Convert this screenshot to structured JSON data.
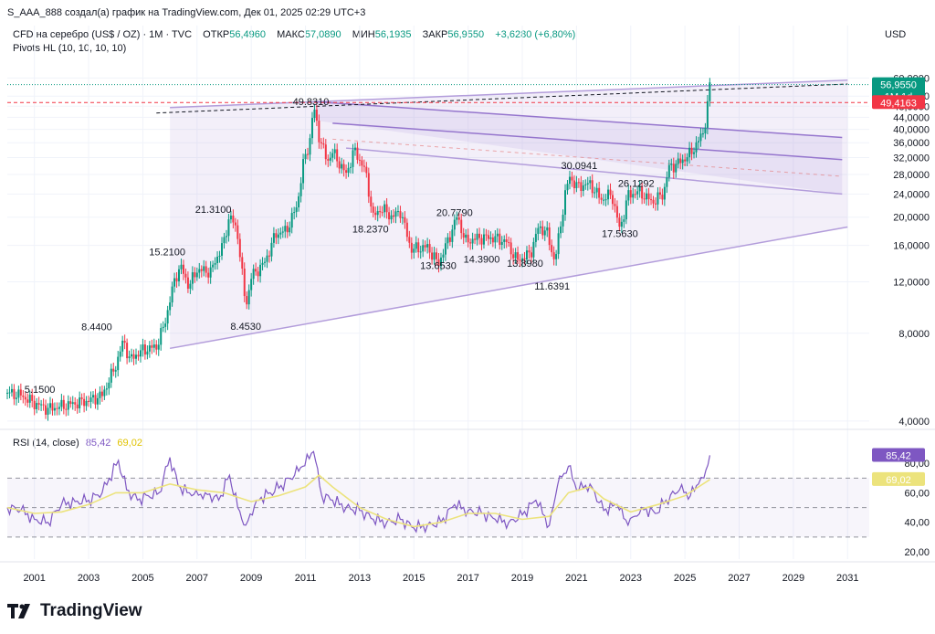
{
  "header": {
    "attribution": "S_AAA_888 создал(а) график на TradingView.com, Дек 01, 2025 02:29 UTC+3"
  },
  "symbol_line": {
    "title": "CFD на серебро (US$ / OZ) · 1M · TVC",
    "open_label": "ОТКР",
    "open_value": "56,4960",
    "high_label": "МАКС",
    "high_value": "57,0890",
    "low_label": "МИН",
    "low_value": "56,1935",
    "close_label": "ЗАКР",
    "close_value": "56,9550",
    "change": "+3,6280 (+6,80%)"
  },
  "indicator_line": "Pivots HL (10, 10, 10, 10)",
  "rsi_legend": {
    "label": "RSI (14, close)",
    "rsi_value": "85,42",
    "ma_value": "69,02"
  },
  "currency": "USD",
  "logo_text": "TradingView",
  "colors": {
    "up": "#089981",
    "down": "#f23645",
    "rsi": "#7e57c2",
    "rsi_ma": "#ece37c",
    "channel": "#b39ddb",
    "price_line": "#089981",
    "red_line": "#f23645"
  },
  "chart_data": [
    {
      "type": "candlestick",
      "interval": "1M",
      "y_scale": "log",
      "ylim": [
        3.8,
        68
      ],
      "xlim": [
        2000.0,
        2031.8
      ],
      "x_ticks": [
        "2001",
        "2003",
        "2005",
        "2007",
        "2009",
        "2011",
        "2013",
        "2015",
        "2017",
        "2019",
        "2021",
        "2023",
        "2025",
        "2027",
        "2029",
        "2031"
      ],
      "y_ticks": [
        "60,0000",
        "52,0000",
        "48,0000",
        "44,0000",
        "40,0000",
        "36,0000",
        "32,0000",
        "28,0000",
        "24,0000",
        "20,0000",
        "16,0000",
        "12,0000",
        "8,0000",
        "4,0000"
      ],
      "series": [
        {
          "close": [
            [
              2000.0,
              5.0
            ],
            [
              2000.5,
              4.9
            ],
            [
              2001.0,
              4.6
            ],
            [
              2001.5,
              4.4
            ],
            [
              2002.0,
              4.5
            ],
            [
              2002.5,
              4.6
            ],
            [
              2003.0,
              4.7
            ],
            [
              2003.5,
              4.9
            ],
            [
              2004.0,
              6.2
            ],
            [
              2004.3,
              7.6
            ],
            [
              2004.5,
              6.5
            ],
            [
              2005.0,
              7.0
            ],
            [
              2005.5,
              7.2
            ],
            [
              2005.8,
              8.6
            ],
            [
              2006.2,
              12.5
            ],
            [
              2006.4,
              13.5
            ],
            [
              2006.7,
              11.6
            ],
            [
              2007.0,
              13.2
            ],
            [
              2007.5,
              13.0
            ],
            [
              2008.0,
              16.5
            ],
            [
              2008.2,
              20.5
            ],
            [
              2008.5,
              17.5
            ],
            [
              2008.8,
              9.8
            ],
            [
              2009.0,
              12.5
            ],
            [
              2009.5,
              14.0
            ],
            [
              2009.9,
              17.5
            ],
            [
              2010.3,
              18.0
            ],
            [
              2010.7,
              22.0
            ],
            [
              2010.9,
              30.0
            ],
            [
              2011.15,
              36.0
            ],
            [
              2011.3,
              48.0
            ],
            [
              2011.5,
              38.0
            ],
            [
              2011.8,
              31.0
            ],
            [
              2012.0,
              33.5
            ],
            [
              2012.5,
              28.0
            ],
            [
              2012.8,
              34.0
            ],
            [
              2013.2,
              29.0
            ],
            [
              2013.5,
              20.0
            ],
            [
              2013.8,
              21.5
            ],
            [
              2014.2,
              20.0
            ],
            [
              2014.5,
              21.0
            ],
            [
              2014.9,
              15.5
            ],
            [
              2015.5,
              15.8
            ],
            [
              2015.9,
              13.8
            ],
            [
              2016.3,
              17.0
            ],
            [
              2016.6,
              20.2
            ],
            [
              2016.9,
              16.5
            ],
            [
              2017.4,
              17.0
            ],
            [
              2017.9,
              17.0
            ],
            [
              2018.4,
              16.5
            ],
            [
              2018.8,
              14.2
            ],
            [
              2019.3,
              15.0
            ],
            [
              2019.6,
              18.5
            ],
            [
              2019.9,
              17.8
            ],
            [
              2020.2,
              14.0
            ],
            [
              2020.6,
              24.5
            ],
            [
              2020.75,
              27.5
            ],
            [
              2021.0,
              25.5
            ],
            [
              2021.5,
              26.0
            ],
            [
              2021.9,
              23.0
            ],
            [
              2022.3,
              24.0
            ],
            [
              2022.6,
              18.0
            ],
            [
              2022.9,
              23.8
            ],
            [
              2023.3,
              24.5
            ],
            [
              2023.8,
              22.5
            ],
            [
              2024.2,
              24.0
            ],
            [
              2024.4,
              29.5
            ],
            [
              2024.8,
              30.8
            ],
            [
              2025.2,
              33.0
            ],
            [
              2025.5,
              36.5
            ],
            [
              2025.7,
              39.5
            ],
            [
              2025.83,
              48.0
            ],
            [
              2025.92,
              56.955
            ]
          ]
        }
      ],
      "annotations": [
        {
          "x": 2001.2,
          "y": 5.15,
          "text": "5.1500"
        },
        {
          "x": 2003.3,
          "y": 8.44,
          "text": "8.4400"
        },
        {
          "x": 2005.9,
          "y": 15.21,
          "text": "15.2100"
        },
        {
          "x": 2007.6,
          "y": 21.31,
          "text": "21.3100"
        },
        {
          "x": 2008.8,
          "y": 8.453,
          "text": "8.4530"
        },
        {
          "x": 2011.2,
          "y": 49.831,
          "text": "49.8310"
        },
        {
          "x": 2013.4,
          "y": 18.237,
          "text": "18.2370"
        },
        {
          "x": 2016.5,
          "y": 20.779,
          "text": "20.7790"
        },
        {
          "x": 2015.9,
          "y": 13.653,
          "text": "13.6530"
        },
        {
          "x": 2017.5,
          "y": 14.39,
          "text": "14.3900"
        },
        {
          "x": 2019.1,
          "y": 13.898,
          "text": "13.8980"
        },
        {
          "x": 2020.1,
          "y": 11.6391,
          "text": "11.6391"
        },
        {
          "x": 2021.1,
          "y": 30.0941,
          "text": "30.0941"
        },
        {
          "x": 2023.2,
          "y": 26.1292,
          "text": "26.1292"
        },
        {
          "x": 2022.6,
          "y": 17.563,
          "text": "17.5630"
        }
      ],
      "price_tags": [
        {
          "value": 56.955,
          "text": "56,9550",
          "subtext": "1M 1d",
          "color": "#089981"
        },
        {
          "value": 49.4163,
          "text": "49,4163",
          "color": "#f23645"
        }
      ]
    },
    {
      "type": "line",
      "title": "RSI (14, close)",
      "ylim": [
        15,
        95
      ],
      "y_ticks": [
        "80,00",
        "60,00",
        "40,00",
        "20,00"
      ],
      "bands": [
        70,
        50,
        30
      ],
      "series": [
        {
          "name": "RSI",
          "x": [
            2000.0,
            2000.5,
            2001.0,
            2001.5,
            2002.0,
            2002.5,
            2003.0,
            2003.5,
            2004.1,
            2004.4,
            2004.8,
            2005.2,
            2005.6,
            2006.0,
            2006.3,
            2006.8,
            2007.3,
            2007.8,
            2008.2,
            2008.5,
            2008.8,
            2009.2,
            2009.7,
            2010.1,
            2010.6,
            2010.9,
            2011.3,
            2011.6,
            2012.0,
            2012.5,
            2013.0,
            2013.5,
            2014.0,
            2014.5,
            2015.0,
            2015.5,
            2016.0,
            2016.5,
            2017.0,
            2017.5,
            2018.0,
            2018.5,
            2019.0,
            2019.5,
            2020.0,
            2020.3,
            2020.7,
            2021.0,
            2021.5,
            2022.0,
            2022.5,
            2022.9,
            2023.4,
            2023.9,
            2024.3,
            2024.8,
            2025.2,
            2025.5,
            2025.7,
            2025.92
          ],
          "values": [
            50,
            48,
            42,
            40,
            52,
            54,
            55,
            60,
            82,
            62,
            55,
            58,
            60,
            84,
            65,
            58,
            60,
            55,
            72,
            50,
            38,
            55,
            60,
            65,
            72,
            78,
            88,
            58,
            55,
            50,
            48,
            42,
            40,
            42,
            36,
            38,
            40,
            52,
            48,
            46,
            42,
            40,
            45,
            55,
            38,
            65,
            78,
            62,
            66,
            48,
            52,
            38,
            50,
            46,
            55,
            62,
            58,
            66,
            70,
            85.42
          ]
        },
        {
          "name": "RSI-based MA",
          "x": [
            2000.0,
            2001.0,
            2002.0,
            2003.0,
            2004.0,
            2005.0,
            2006.0,
            2007.0,
            2008.0,
            2009.0,
            2010.0,
            2011.0,
            2011.5,
            2012.0,
            2013.0,
            2014.0,
            2015.0,
            2016.0,
            2017.0,
            2018.0,
            2019.0,
            2020.0,
            2020.7,
            2021.5,
            2022.0,
            2023.0,
            2024.0,
            2025.0,
            2025.5,
            2025.92
          ],
          "values": [
            50,
            46,
            47,
            52,
            60,
            60,
            66,
            62,
            60,
            54,
            58,
            64,
            72,
            64,
            50,
            42,
            37,
            40,
            46,
            46,
            42,
            44,
            60,
            64,
            56,
            47,
            52,
            58,
            64,
            69.02
          ]
        }
      ],
      "price_tags": [
        {
          "value": 85.42,
          "text": "85,42",
          "color": "#7e57c2"
        },
        {
          "value": 69.02,
          "text": "69,02",
          "color": "#ece37c"
        }
      ]
    }
  ]
}
